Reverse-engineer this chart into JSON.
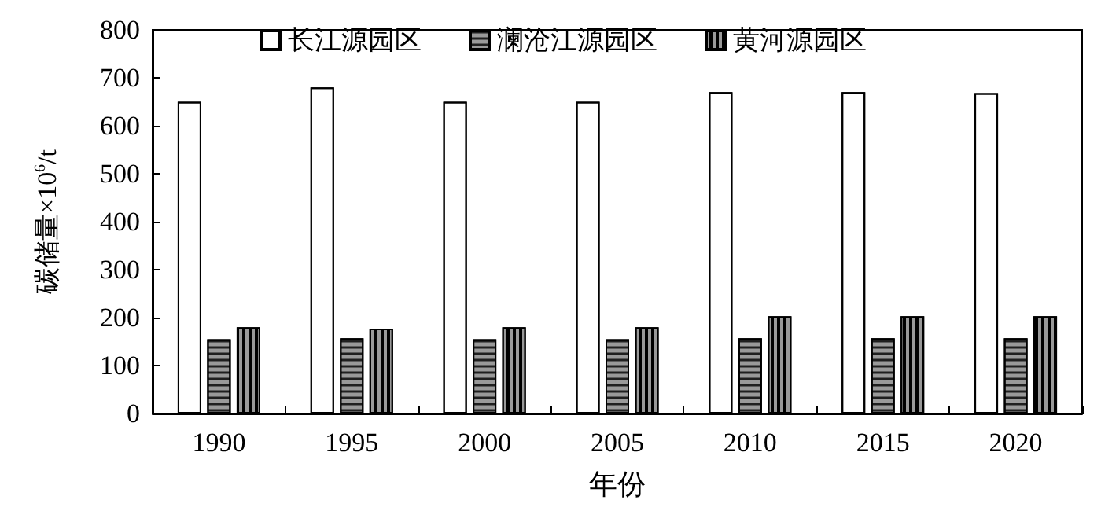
{
  "chart_data": {
    "type": "bar",
    "xlabel": "年份",
    "ylabel": "碳储量×10$^{6}$/t",
    "categories": [
      "1990",
      "1995",
      "2000",
      "2005",
      "2010",
      "2015",
      "2020"
    ],
    "series": [
      {
        "name": "长江源园区",
        "color": "#ffffff",
        "values": [
          650,
          680,
          650,
          650,
          670,
          670,
          668
        ]
      },
      {
        "name": "澜沧江源园区",
        "color": "#999999",
        "values": [
          155,
          157,
          155,
          155,
          157,
          157,
          157
        ]
      },
      {
        "name": "黄河源园区",
        "color": "#999999",
        "values": [
          180,
          177,
          180,
          180,
          203,
          203,
          203
        ]
      }
    ],
    "ylim": [
      0,
      800
    ],
    "yticks": [
      0,
      100,
      200,
      300,
      400,
      500,
      600,
      700,
      800
    ],
    "grid": false,
    "legend": "top"
  }
}
